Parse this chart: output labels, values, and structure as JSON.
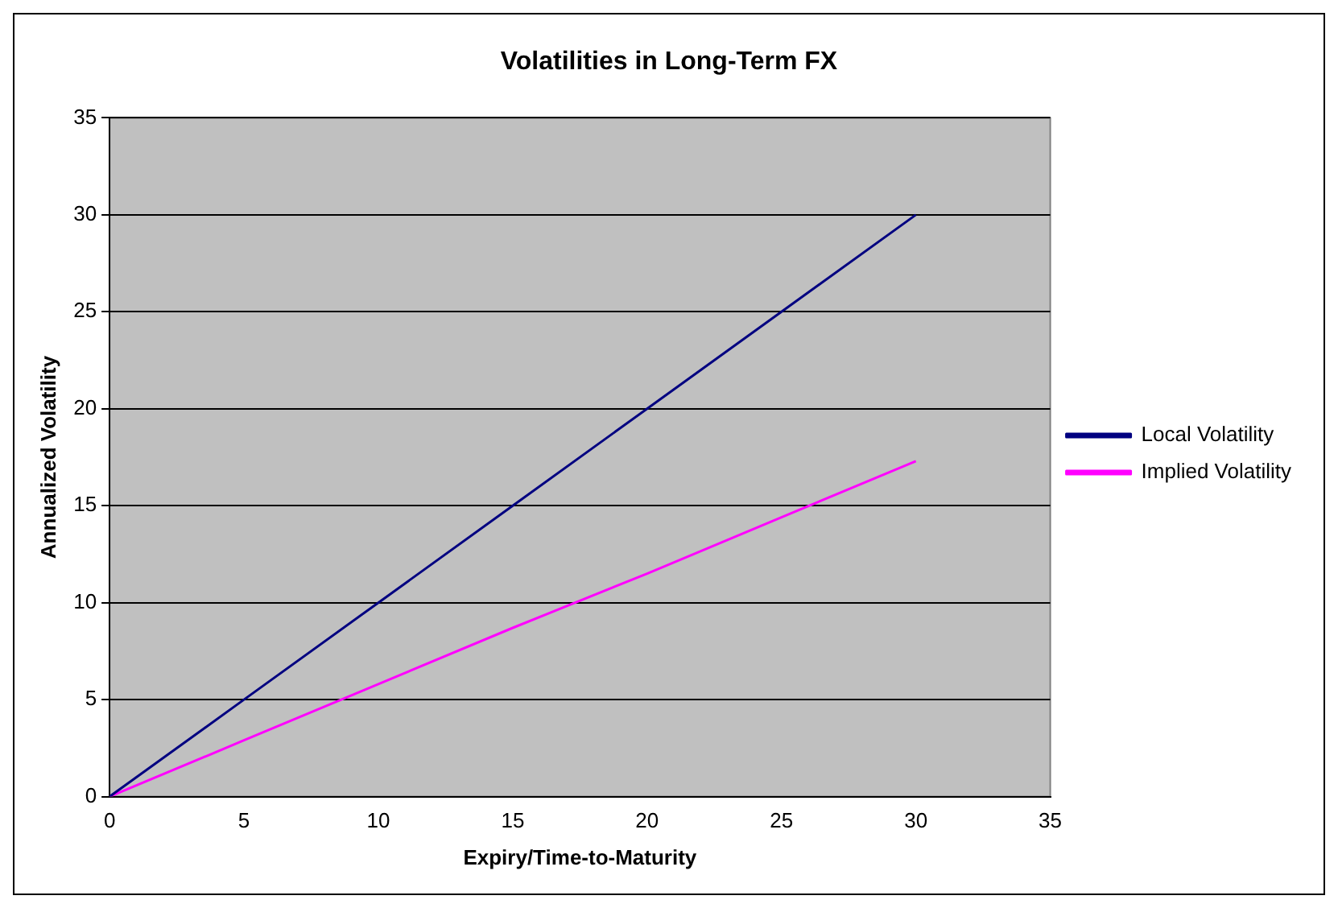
{
  "chart_data": {
    "type": "line",
    "title": "Volatilities in Long-Term FX",
    "xlabel": "Expiry/Time-to-Maturity",
    "ylabel": "Annualized Volatility",
    "x": [
      0,
      5,
      10,
      15,
      20,
      25,
      30
    ],
    "series": [
      {
        "name": "Local Volatility",
        "color": "#000080",
        "values": [
          0,
          5,
          10,
          15,
          20,
          25,
          30
        ]
      },
      {
        "name": "Implied Volatility",
        "color": "#ff00ff",
        "values": [
          0,
          2.9,
          5.8,
          8.7,
          11.5,
          14.4,
          17.3
        ]
      }
    ],
    "xlim": [
      0,
      35
    ],
    "xticks": [
      0,
      5,
      10,
      15,
      20,
      25,
      30,
      35
    ],
    "ylim": [
      0,
      35
    ],
    "yticks": [
      0,
      5,
      10,
      15,
      20,
      25,
      30,
      35
    ],
    "grid": "y",
    "legend": "right",
    "marker": "none"
  }
}
